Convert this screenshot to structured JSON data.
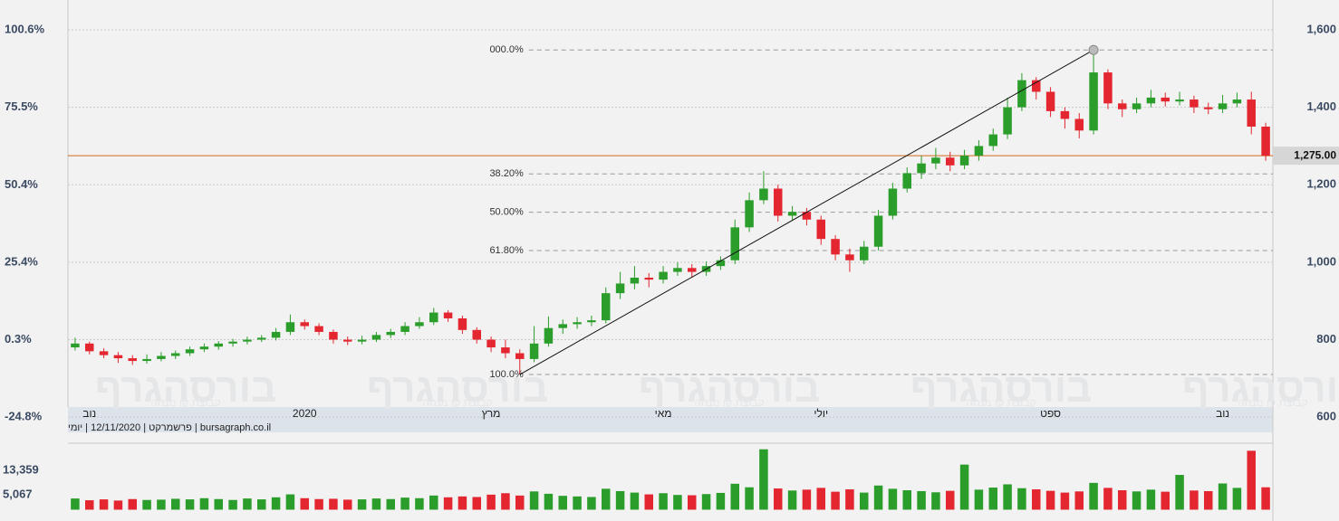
{
  "chart_data": {
    "type": "candlestick",
    "categories": [
      null,
      "נוב",
      null,
      null,
      null,
      null,
      null,
      null,
      null,
      null,
      null,
      null,
      null,
      null,
      null,
      null,
      "2020",
      null,
      null,
      null,
      null,
      null,
      null,
      null,
      null,
      null,
      null,
      null,
      null,
      "מרץ",
      null,
      null,
      null,
      null,
      null,
      null,
      null,
      null,
      null,
      null,
      null,
      "מאי",
      null,
      null,
      null,
      null,
      null,
      null,
      null,
      null,
      null,
      null,
      "יולי",
      null,
      null,
      null,
      null,
      null,
      null,
      null,
      null,
      null,
      null,
      null,
      null,
      null,
      null,
      null,
      "ספט",
      null,
      null,
      null,
      null,
      null,
      null,
      null,
      null,
      null,
      null,
      null,
      "נוב",
      null,
      null,
      null
    ],
    "open": [
      780,
      790,
      770,
      760,
      752,
      745,
      750,
      758,
      765,
      775,
      782,
      790,
      795,
      800,
      805,
      820,
      845,
      835,
      820,
      800,
      795,
      800,
      812,
      820,
      835,
      845,
      870,
      855,
      825,
      800,
      780,
      765,
      750,
      790,
      830,
      840,
      845,
      850,
      920,
      945,
      960,
      955,
      975,
      985,
      975,
      990,
      1005,
      1090,
      1160,
      1190,
      1120,
      1130,
      1110,
      1060,
      1020,
      1005,
      1040,
      1120,
      1190,
      1230,
      1255,
      1270,
      1250,
      1275,
      1300,
      1330,
      1400,
      1470,
      1440,
      1390,
      1370,
      1340,
      1490,
      1410,
      1395,
      1410,
      1425,
      1415,
      1420,
      1400,
      1395,
      1410,
      1420,
      1350
    ],
    "high": [
      805,
      795,
      778,
      768,
      760,
      762,
      768,
      772,
      782,
      790,
      796,
      802,
      808,
      812,
      830,
      865,
      852,
      842,
      826,
      808,
      810,
      820,
      828,
      845,
      858,
      882,
      876,
      862,
      832,
      808,
      800,
      775,
      835,
      860,
      852,
      858,
      862,
      935,
      975,
      990,
      972,
      990,
      1000,
      995,
      1002,
      1015,
      1110,
      1180,
      1235,
      1200,
      1145,
      1140,
      1120,
      1070,
      1035,
      1055,
      1135,
      1205,
      1245,
      1275,
      1295,
      1285,
      1290,
      1315,
      1345,
      1425,
      1488,
      1478,
      1452,
      1400,
      1385,
      1548,
      1498,
      1420,
      1425,
      1445,
      1438,
      1440,
      1430,
      1412,
      1432,
      1438,
      1440,
      1360
    ],
    "low": [
      772,
      762,
      752,
      740,
      735,
      738,
      744,
      750,
      758,
      768,
      774,
      782,
      788,
      794,
      798,
      812,
      826,
      812,
      790,
      786,
      788,
      794,
      804,
      812,
      828,
      838,
      846,
      815,
      790,
      768,
      752,
      710,
      742,
      782,
      815,
      828,
      835,
      842,
      905,
      930,
      935,
      945,
      965,
      960,
      965,
      980,
      995,
      1078,
      1150,
      1105,
      1108,
      1095,
      1045,
      1005,
      975,
      995,
      1030,
      1110,
      1180,
      1215,
      1240,
      1235,
      1240,
      1262,
      1288,
      1318,
      1390,
      1420,
      1375,
      1345,
      1320,
      1330,
      1395,
      1375,
      1385,
      1400,
      1402,
      1405,
      1385,
      1382,
      1385,
      1400,
      1330,
      1262
    ],
    "close": [
      790,
      770,
      760,
      752,
      745,
      750,
      758,
      765,
      775,
      782,
      790,
      795,
      800,
      805,
      820,
      845,
      835,
      820,
      800,
      795,
      800,
      812,
      820,
      835,
      845,
      870,
      855,
      825,
      800,
      780,
      765,
      750,
      790,
      830,
      840,
      845,
      850,
      920,
      945,
      960,
      955,
      975,
      985,
      975,
      990,
      1005,
      1090,
      1160,
      1190,
      1120,
      1130,
      1110,
      1060,
      1020,
      1005,
      1040,
      1120,
      1190,
      1230,
      1255,
      1270,
      1250,
      1275,
      1300,
      1330,
      1400,
      1470,
      1440,
      1390,
      1370,
      1340,
      1490,
      1410,
      1395,
      1410,
      1425,
      1415,
      1420,
      1400,
      1395,
      1410,
      1420,
      1350,
      1275
    ],
    "volume": [
      3800,
      3200,
      3500,
      3100,
      3600,
      3300,
      3400,
      3700,
      3500,
      3900,
      3600,
      3300,
      3800,
      3500,
      4200,
      5200,
      3900,
      3600,
      3700,
      3400,
      3500,
      3800,
      3600,
      4100,
      3900,
      4800,
      4200,
      4500,
      4300,
      5100,
      5600,
      4800,
      6200,
      5400,
      4700,
      4500,
      4300,
      7100,
      6300,
      5800,
      5200,
      5600,
      5000,
      4900,
      5300,
      5700,
      8800,
      7600,
      20500,
      7200,
      6500,
      6800,
      7400,
      6100,
      6900,
      5800,
      8200,
      7100,
      6600,
      6300,
      5900,
      6400,
      15300,
      6800,
      7500,
      8600,
      7300,
      6900,
      6400,
      5800,
      6200,
      9100,
      7400,
      6600,
      6200,
      6800,
      6100,
      11800,
      6500,
      6300,
      8900,
      7400,
      20000,
      7600
    ],
    "up_color": "#2a9d2a",
    "down_color": "#e3262f",
    "ylim": [
      591,
      1677
    ],
    "yticks": [
      {
        "value": 1600,
        "label": "1,600"
      },
      {
        "value": 1400,
        "label": "1,400"
      },
      {
        "value": 1200,
        "label": "1,200"
      },
      {
        "value": 1000,
        "label": "1,000"
      },
      800,
      600
    ],
    "y2lim": [
      -25.9,
      110.3
    ],
    "y2ticks": [
      {
        "value": 100.6,
        "label": "100.6%"
      },
      {
        "value": 75.5,
        "label": "75.5%"
      },
      {
        "value": 50.4,
        "label": "50.4%"
      },
      {
        "value": 25.4,
        "label": "25.4%"
      },
      {
        "value": 0.3,
        "label": "0.3%"
      },
      {
        "value": -24.8,
        "label": "-24.8%"
      }
    ],
    "volume_lim": [
      -3840,
      22560
    ],
    "volume_ticks": [
      {
        "value": 13359,
        "label": "13,359"
      },
      {
        "value": 5067,
        "label": "5,067"
      }
    ],
    "fib_levels": [
      {
        "value": 1548,
        "label": "000.0%"
      },
      {
        "value": 1228,
        "label": "38.20%"
      },
      {
        "value": 1129,
        "label": "50.00%"
      },
      {
        "value": 1030,
        "label": "61.80%"
      },
      {
        "value": 710,
        "label": "100.0%"
      }
    ],
    "last_price": {
      "value": 1275,
      "label": "1,275.00"
    },
    "last_price_color": "#d2691e",
    "footer": "bursagraph.co.il | פרשמרקט | 12/11/2020 | יומי",
    "watermark": "בורסהגרף",
    "watermark_sub": "קבוצת קו מנחה",
    "grid": true
  }
}
